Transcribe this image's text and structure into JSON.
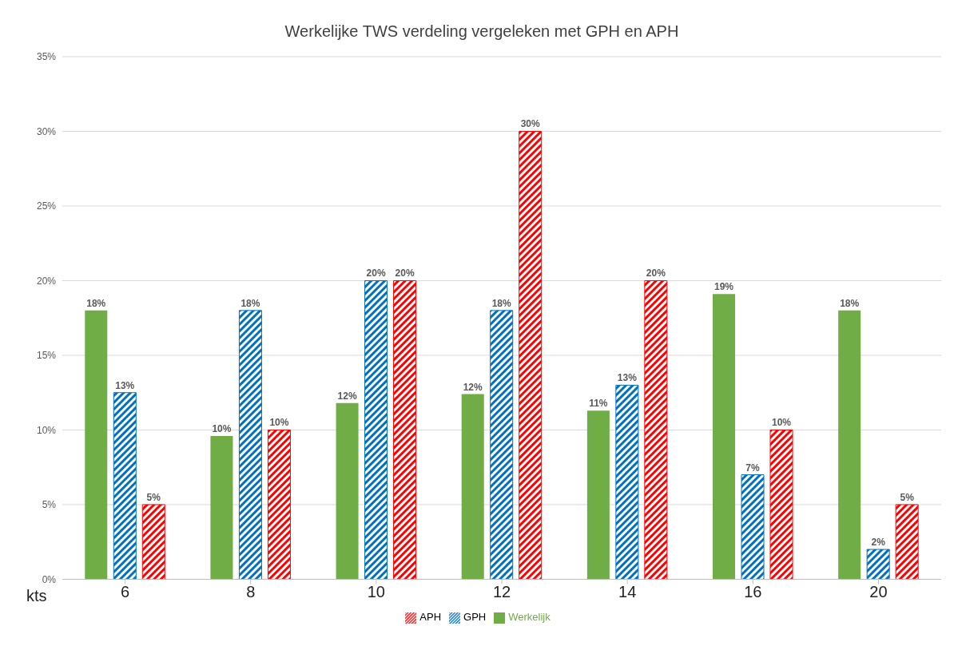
{
  "chart_data": {
    "type": "bar",
    "title": "Werkelijke TWS verdeling vergeleken met GPH en APH",
    "xlabel": "kts",
    "categories": [
      "6",
      "8",
      "10",
      "12",
      "14",
      "16",
      "20"
    ],
    "series": [
      {
        "name": "Werkelijk",
        "color": "#70ad47",
        "values": [
          18,
          9.6,
          11.8,
          12.4,
          11.3,
          19.1,
          18
        ],
        "value_labels": [
          "18%",
          "10%",
          "12%",
          "12%",
          "11%",
          "19%",
          "18%"
        ]
      },
      {
        "name": "GPH",
        "color": "#0070c0",
        "values": [
          12.5,
          18,
          20,
          18,
          13,
          7,
          2
        ],
        "value_labels": [
          "13%",
          "18%",
          "20%",
          "18%",
          "13%",
          "7%",
          "2%"
        ]
      },
      {
        "name": "APH",
        "color": "#ff0000",
        "values": [
          5,
          10,
          20,
          30,
          20,
          10,
          5
        ],
        "value_labels": [
          "5%",
          "10%",
          "20%",
          "30%",
          "20%",
          "10%",
          "5%"
        ]
      }
    ],
    "ylim": [
      0,
      35
    ],
    "yticks": [
      {
        "value": 0,
        "label": "0%"
      },
      {
        "value": 5,
        "label": "5%"
      },
      {
        "value": 10,
        "label": "10%"
      },
      {
        "value": 15,
        "label": "15%"
      },
      {
        "value": 20,
        "label": "20%"
      },
      {
        "value": 25,
        "label": "25%"
      },
      {
        "value": 30,
        "label": "30%"
      },
      {
        "value": 35,
        "label": "35%"
      }
    ],
    "grid": "y",
    "legend": "bottom"
  }
}
